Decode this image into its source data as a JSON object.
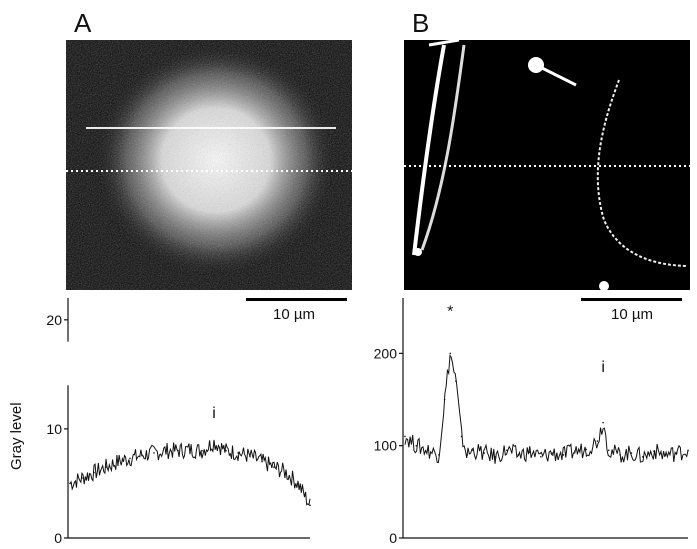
{
  "panels": [
    {
      "label": "A",
      "scale_bar_label": "10 µm"
    },
    {
      "label": "B",
      "scale_bar_label": "10 µm"
    }
  ],
  "y_axis_label": "Gray level",
  "chart_data": [
    {
      "type": "line",
      "panel": "A",
      "ylabel": "Gray level",
      "ylim": [
        0,
        22
      ],
      "yticks": [
        0,
        10,
        20
      ],
      "ytick_labels": [
        "0",
        "10",
        "20"
      ],
      "axis_break_between": [
        14,
        18
      ],
      "x": [
        0,
        5,
        10,
        15,
        20,
        25,
        30,
        35,
        40,
        45,
        50,
        55,
        60,
        65,
        70,
        75,
        80,
        85,
        90,
        95,
        100
      ],
      "values": [
        5,
        5.5,
        6,
        6.5,
        7,
        7.3,
        7.6,
        7.8,
        8,
        8,
        8.1,
        8,
        8.8,
        8,
        7.8,
        7.5,
        7,
        6.5,
        6,
        5,
        3
      ],
      "annotations": [
        {
          "x": 60,
          "y": 11,
          "text": "i"
        }
      ],
      "color": "#111111"
    },
    {
      "type": "line",
      "panel": "B",
      "ylabel": "",
      "ylim": [
        0,
        260
      ],
      "yticks": [
        0,
        100,
        200
      ],
      "ytick_labels": [
        "0",
        "100",
        "200"
      ],
      "x": [
        0,
        4,
        8,
        12,
        14,
        16,
        18,
        20,
        22,
        24,
        28,
        32,
        36,
        40,
        44,
        48,
        52,
        56,
        60,
        64,
        68,
        70,
        72,
        76,
        80,
        84,
        88,
        92,
        96,
        100
      ],
      "values": [
        110,
        100,
        95,
        90,
        150,
        200,
        170,
        110,
        90,
        95,
        92,
        88,
        95,
        90,
        93,
        88,
        92,
        90,
        94,
        96,
        105,
        125,
        95,
        90,
        92,
        88,
        94,
        90,
        92,
        95
      ],
      "annotations": [
        {
          "x": 16,
          "y": 240,
          "text": "*"
        },
        {
          "x": 70,
          "y": 180,
          "text": "i"
        }
      ],
      "color": "#111111"
    }
  ]
}
